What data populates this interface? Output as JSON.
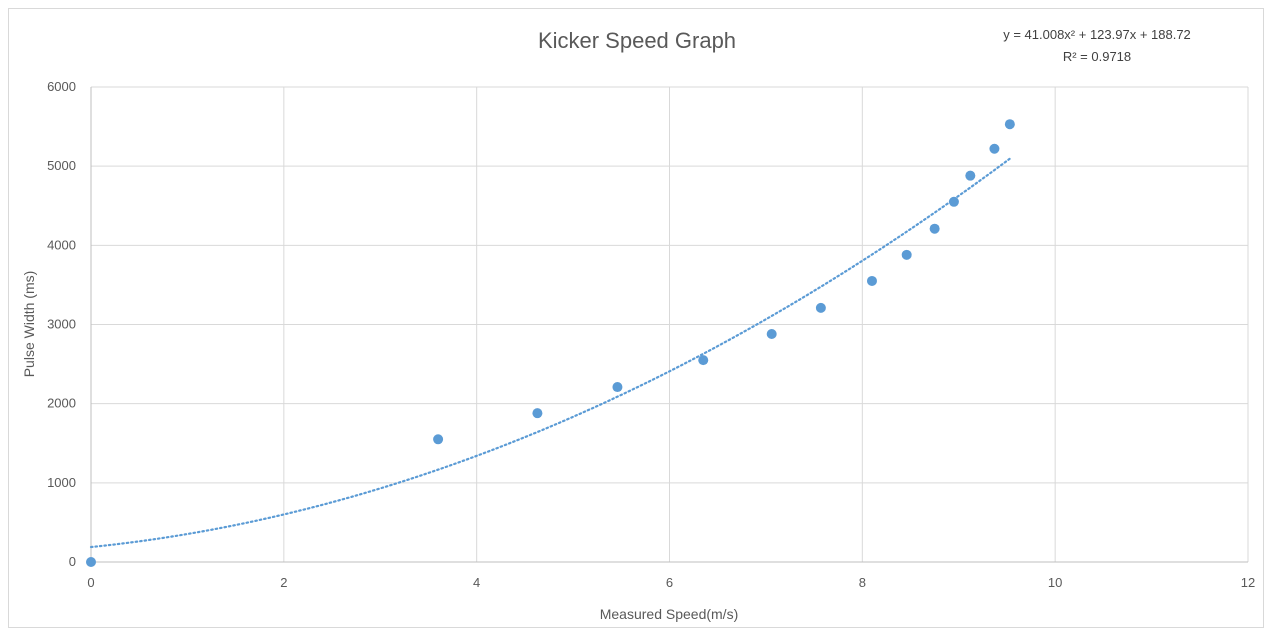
{
  "chart_data": {
    "type": "scatter",
    "title": "Kicker Speed Graph",
    "xlabel": "Measured Speed(m/s)",
    "ylabel": "Pulse Width (ms)",
    "xlim": [
      0,
      12
    ],
    "ylim": [
      0,
      6000
    ],
    "xticks": [
      "0",
      "2",
      "4",
      "6",
      "8",
      "10",
      "12"
    ],
    "yticks": [
      "0",
      "1000",
      "2000",
      "3000",
      "4000",
      "5000",
      "6000"
    ],
    "grid": true,
    "legend": "none",
    "series": [
      {
        "points": [
          [
            0,
            0
          ],
          [
            3.6,
            1550
          ],
          [
            4.63,
            1880
          ],
          [
            5.46,
            2210
          ],
          [
            6.35,
            2550
          ],
          [
            7.06,
            2880
          ],
          [
            7.57,
            3210
          ],
          [
            8.1,
            3550
          ],
          [
            8.46,
            3880
          ],
          [
            8.75,
            4210
          ],
          [
            8.95,
            4550
          ],
          [
            9.12,
            4880
          ],
          [
            9.37,
            5220
          ],
          [
            9.53,
            5530
          ]
        ],
        "color": "#5b9bd5"
      }
    ],
    "trendline": {
      "kind": "polynomial",
      "coefficients": [
        41.008,
        123.97,
        188.72
      ],
      "x_range": [
        0,
        9.53
      ],
      "color": "#5b9bd5"
    },
    "annotations": {
      "equation": "y = 41.008x² + 123.97x + 188.72",
      "r_squared": "R² = 0.9718"
    }
  }
}
